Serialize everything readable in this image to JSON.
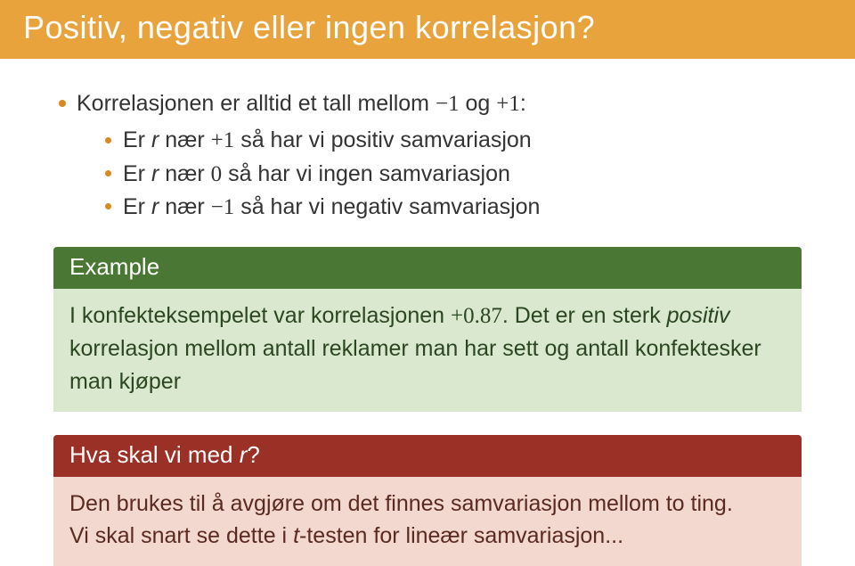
{
  "colors": {
    "title_bg": "#e8a33d",
    "title_fg": "#ffffff",
    "bullet": "#d68a1f",
    "example_title_bg": "#4a7834",
    "example_body_bg": "#d9e8cf",
    "example_body_fg": "#2b4720",
    "alert_title_bg": "#9a3026",
    "alert_body_bg": "#f2d8ce",
    "alert_body_fg": "#5a2a20"
  },
  "title": "Positiv, negativ eller ingen korrelasjon?",
  "main_bullet": {
    "pre": "Korrelasjonen er alltid et tall mellom ",
    "range_low": "−1",
    "mid": " og ",
    "range_high": "+1",
    "post": ":"
  },
  "subs": {
    "s1": {
      "pre": "Er ",
      "rvar": "r",
      "mid": " nær ",
      "val": "+1",
      "post": " så har vi positiv samvariasjon"
    },
    "s2": {
      "pre": "Er ",
      "rvar": "r",
      "mid": " nær ",
      "val": "0",
      "post": " så har vi ingen samvariasjon"
    },
    "s3": {
      "pre": "Er ",
      "rvar": "r",
      "mid": " nær ",
      "val": "−1",
      "post": " så har vi negativ samvariasjon"
    }
  },
  "example": {
    "title": "Example",
    "p1_a": "I konfekteksempelet var korrelasjonen ",
    "p1_val": "+0.87",
    "p1_b": ". Det er en sterk ",
    "p1_em": "positiv",
    "p1_c": " korrelasjon mellom antall reklamer man har sett og antall konfektesker man kjøper"
  },
  "alert": {
    "title_a": "Hva skal vi med ",
    "title_r": "r",
    "title_b": "?",
    "line1": "Den brukes til å avgjøre om det finnes samvariasjon mellom to ting.",
    "line2_a": "Vi skal snart se dette i ",
    "line2_em": "t",
    "line2_b": "-testen for lineær samvariasjon..."
  }
}
